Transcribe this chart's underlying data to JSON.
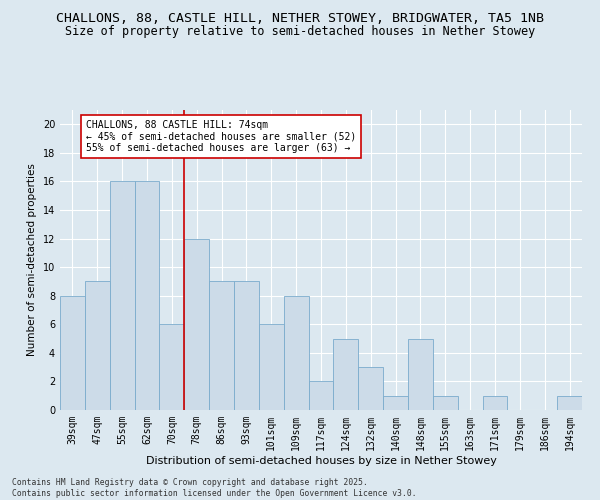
{
  "title1": "CHALLONS, 88, CASTLE HILL, NETHER STOWEY, BRIDGWATER, TA5 1NB",
  "title2": "Size of property relative to semi-detached houses in Nether Stowey",
  "xlabel": "Distribution of semi-detached houses by size in Nether Stowey",
  "ylabel": "Number of semi-detached properties",
  "categories": [
    "39sqm",
    "47sqm",
    "55sqm",
    "62sqm",
    "70sqm",
    "78sqm",
    "86sqm",
    "93sqm",
    "101sqm",
    "109sqm",
    "117sqm",
    "124sqm",
    "132sqm",
    "140sqm",
    "148sqm",
    "155sqm",
    "163sqm",
    "171sqm",
    "179sqm",
    "186sqm",
    "194sqm"
  ],
  "values": [
    8,
    9,
    16,
    16,
    6,
    12,
    9,
    9,
    6,
    8,
    2,
    5,
    3,
    1,
    5,
    1,
    0,
    1,
    0,
    0,
    1
  ],
  "bar_color": "#ccdbe8",
  "bar_edge_color": "#7aabcc",
  "highlight_index": 4,
  "highlight_line_color": "#cc0000",
  "ylim": [
    0,
    21
  ],
  "yticks": [
    0,
    2,
    4,
    6,
    8,
    10,
    12,
    14,
    16,
    18,
    20
  ],
  "annotation_title": "CHALLONS, 88 CASTLE HILL: 74sqm",
  "annotation_line1": "← 45% of semi-detached houses are smaller (52)",
  "annotation_line2": "55% of semi-detached houses are larger (63) →",
  "annotation_box_color": "#ffffff",
  "annotation_box_edge": "#cc0000",
  "background_color": "#dce8f0",
  "footer": "Contains HM Land Registry data © Crown copyright and database right 2025.\nContains public sector information licensed under the Open Government Licence v3.0.",
  "title_fontsize": 9.5,
  "subtitle_fontsize": 8.5,
  "tick_fontsize": 7,
  "annotation_fontsize": 7,
  "ylabel_fontsize": 7.5,
  "xlabel_fontsize": 8
}
